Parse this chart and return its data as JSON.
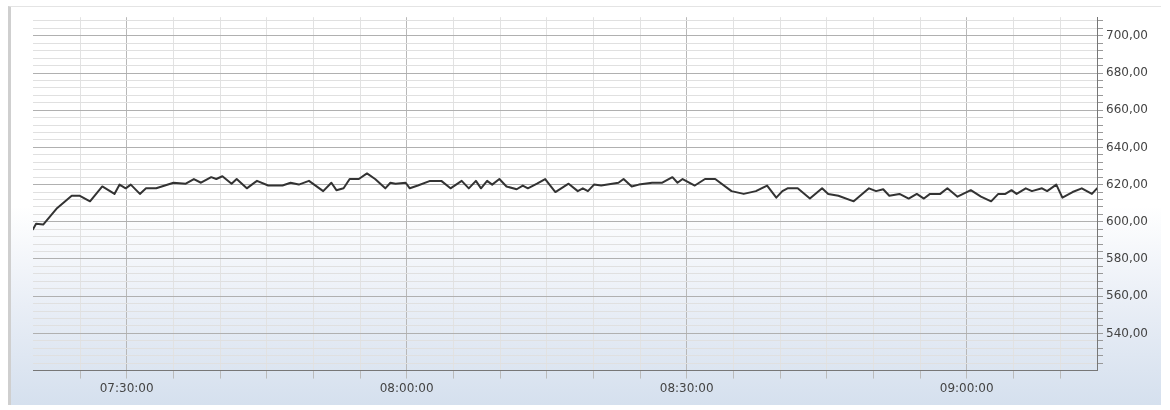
{
  "chart_data": {
    "type": "line",
    "x": [
      7.3327,
      7.3382,
      7.3509,
      7.3745,
      7.4018,
      7.4164,
      7.4345,
      7.4564,
      7.4782,
      7.4873,
      7.4982,
      7.5073,
      7.5236,
      7.5345,
      7.5527,
      7.5836,
      7.6055,
      7.62,
      7.6327,
      7.6509,
      7.66,
      7.6709,
      7.6873,
      7.6964,
      7.7145,
      7.7327,
      7.7527,
      7.7782,
      7.7927,
      7.8073,
      7.8255,
      7.8509,
      7.8655,
      7.8745,
      7.8873,
      7.8982,
      7.9145,
      7.9291,
      7.9436,
      7.9618,
      7.9709,
      7.98,
      7.9982,
      8.0055,
      8.02,
      8.0418,
      8.0618,
      8.0782,
      8.0982,
      8.1109,
      8.1236,
      8.1327,
      8.1436,
      8.1527,
      8.1655,
      8.1782,
      8.1964,
      8.2073,
      8.2164,
      8.2327,
      8.2473,
      8.2655,
      8.2891,
      8.3055,
      8.3145,
      8.3236,
      8.3345,
      8.3473,
      8.3782,
      8.3873,
      8.4018,
      8.4145,
      8.4382,
      8.4564,
      8.4745,
      8.4836,
      8.4927,
      8.5145,
      8.5327,
      8.5509,
      8.58,
      8.6018,
      8.6236,
      8.6436,
      8.66,
      8.6709,
      8.68,
      8.6982,
      8.72,
      8.7418,
      8.7527,
      8.7709,
      8.7982,
      8.8255,
      8.8382,
      8.8509,
      8.8618,
      8.88,
      8.8964,
      8.9109,
      8.9236,
      8.9345,
      8.9527,
      8.9655,
      8.9836,
      9.0073,
      9.0255,
      9.0436,
      9.0564,
      9.0691,
      9.08,
      9.0891,
      9.1055,
      9.1164,
      9.1345,
      9.1436,
      9.16,
      9.1709,
      9.1891,
      9.2055,
      9.2236,
      9.2327
    ],
    "series": [
      {
        "color": "#333333",
        "values": [
          596,
          599,
          598.5,
          607,
          614,
          614,
          611,
          619,
          615,
          620,
          618,
          620,
          615,
          618,
          618,
          621,
          620.5,
          623,
          621,
          624,
          623,
          624.5,
          620.5,
          623,
          618,
          622,
          619.5,
          619.5,
          621,
          620,
          622,
          616.5,
          621,
          617,
          618,
          623,
          623,
          626,
          623,
          618,
          621,
          620.5,
          621,
          618,
          619.5,
          622,
          622,
          618,
          622,
          618,
          622,
          618,
          622,
          620,
          623,
          619,
          617.5,
          619.5,
          618,
          620.5,
          623,
          616,
          620.5,
          616.5,
          618,
          616.5,
          620,
          619.5,
          621,
          623,
          619,
          620,
          621,
          621,
          624,
          621,
          623,
          619.5,
          623,
          623,
          616.5,
          615,
          616.5,
          619.5,
          613,
          616.5,
          618,
          618,
          612.5,
          618,
          615,
          614,
          611,
          618,
          616.5,
          617.5,
          614,
          615,
          612.5,
          615,
          612.5,
          615,
          615,
          618,
          613.5,
          617,
          613.5,
          611,
          615,
          615,
          617,
          615,
          618,
          616.5,
          618,
          616.5,
          620,
          613,
          616,
          618,
          615,
          618
        ]
      }
    ],
    "xlim": [
      7.3327,
      9.2327
    ],
    "xticks": [
      {
        "value": 7.4167,
        "label": null
      },
      {
        "value": 7.5,
        "label": "07:30:00"
      },
      {
        "value": 7.5833,
        "label": null
      },
      {
        "value": 7.6667,
        "label": null
      },
      {
        "value": 7.75,
        "label": null
      },
      {
        "value": 7.8333,
        "label": null
      },
      {
        "value": 7.9167,
        "label": null
      },
      {
        "value": 8,
        "label": "08:00:00"
      },
      {
        "value": 8.0833,
        "label": null
      },
      {
        "value": 8.1667,
        "label": null
      },
      {
        "value": 8.25,
        "label": null
      },
      {
        "value": 8.3333,
        "label": null
      },
      {
        "value": 8.4167,
        "label": null
      },
      {
        "value": 8.5,
        "label": "08:30:00"
      },
      {
        "value": 8.5833,
        "label": null
      },
      {
        "value": 8.6667,
        "label": null
      },
      {
        "value": 8.75,
        "label": null
      },
      {
        "value": 8.8333,
        "label": null
      },
      {
        "value": 8.9167,
        "label": null
      },
      {
        "value": 9,
        "label": "09:00:00"
      },
      {
        "value": 9.0833,
        "label": null
      },
      {
        "value": 9.1667,
        "label": null
      }
    ],
    "ylim": [
      520,
      710
    ],
    "yticks": [
      {
        "value": 524,
        "label": null
      },
      {
        "value": 528,
        "label": null
      },
      {
        "value": 532,
        "label": null
      },
      {
        "value": 536,
        "label": null
      },
      {
        "value": 540,
        "label": "540,00"
      },
      {
        "value": 544,
        "label": null
      },
      {
        "value": 548,
        "label": null
      },
      {
        "value": 552,
        "label": null
      },
      {
        "value": 556,
        "label": null
      },
      {
        "value": 560,
        "label": "560,00"
      },
      {
        "value": 564,
        "label": null
      },
      {
        "value": 568,
        "label": null
      },
      {
        "value": 572,
        "label": null
      },
      {
        "value": 576,
        "label": null
      },
      {
        "value": 580,
        "label": "580,00"
      },
      {
        "value": 584,
        "label": null
      },
      {
        "value": 588,
        "label": null
      },
      {
        "value": 592,
        "label": null
      },
      {
        "value": 596,
        "label": null
      },
      {
        "value": 600,
        "label": "600,00"
      },
      {
        "value": 604,
        "label": null
      },
      {
        "value": 608,
        "label": null
      },
      {
        "value": 612,
        "label": null
      },
      {
        "value": 616,
        "label": null
      },
      {
        "value": 620,
        "label": "620,00"
      },
      {
        "value": 624,
        "label": null
      },
      {
        "value": 628,
        "label": null
      },
      {
        "value": 632,
        "label": null
      },
      {
        "value": 636,
        "label": null
      },
      {
        "value": 640,
        "label": "640,00"
      },
      {
        "value": 644,
        "label": null
      },
      {
        "value": 648,
        "label": null
      },
      {
        "value": 652,
        "label": null
      },
      {
        "value": 656,
        "label": null
      },
      {
        "value": 660,
        "label": "660,00"
      },
      {
        "value": 664,
        "label": null
      },
      {
        "value": 668,
        "label": null
      },
      {
        "value": 672,
        "label": null
      },
      {
        "value": 676,
        "label": null
      },
      {
        "value": 680,
        "label": "680,00"
      },
      {
        "value": 684,
        "label": null
      },
      {
        "value": 688,
        "label": null
      },
      {
        "value": 692,
        "label": null
      },
      {
        "value": 696,
        "label": null
      },
      {
        "value": 700,
        "label": "700,00"
      },
      {
        "value": 704,
        "label": null
      },
      {
        "value": 708,
        "label": null
      }
    ],
    "grid": true,
    "legend": false,
    "marker": "none",
    "line_style": "solid"
  }
}
